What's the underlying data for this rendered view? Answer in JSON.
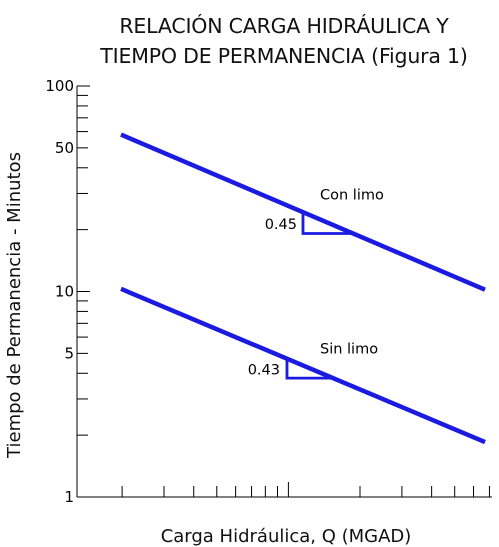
{
  "chart_data": {
    "type": "line",
    "title_lines": [
      "RELACIÓN CARGA HIDRÁULICA Y",
      "TIEMPO DE PERMANENCIA (Figura 1)"
    ],
    "xlabel": "Carga Hidráulica, Q (MGAD)",
    "ylabel": "Tiempo de Permanencia - Minutos",
    "y_scale": "log",
    "x_scale": "log",
    "ylim": [
      1,
      100
    ],
    "y_ticks_major": [
      1,
      10,
      100
    ],
    "y_ticks_labeled": [
      {
        "value": 1,
        "label": "1"
      },
      {
        "value": 5,
        "label": "5"
      },
      {
        "value": 10,
        "label": "10"
      },
      {
        "value": 50,
        "label": "50"
      },
      {
        "value": 100,
        "label": "100"
      }
    ],
    "x_tick_labels": [],
    "grid": false,
    "colors": {
      "series": "#1a1ae0",
      "axis": "#000000",
      "text": "#111111"
    },
    "series": [
      {
        "label": "Con limo",
        "slope_label": "0.45",
        "y_start": 58,
        "y_end": 10.2
      },
      {
        "label": "Sin limo",
        "slope_label": "0.43",
        "y_start": 10.3,
        "y_end": 1.85
      }
    ]
  }
}
